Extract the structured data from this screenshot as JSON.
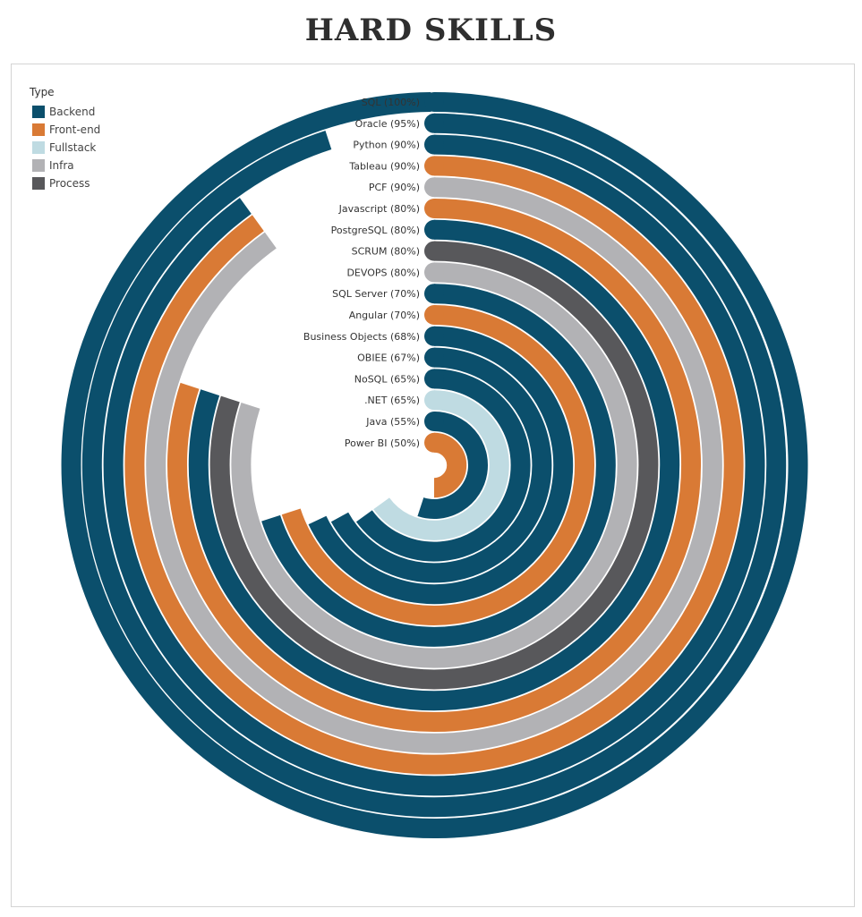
{
  "title": "HARD SKILLS",
  "legend": {
    "title": "Type",
    "items": [
      {
        "label": "Backend",
        "color": "#0b4f6c"
      },
      {
        "label": "Front-end",
        "color": "#d97a35"
      },
      {
        "label": "Fullstack",
        "color": "#bfdbe2"
      },
      {
        "label": "Infra",
        "color": "#b2b2b5"
      },
      {
        "label": "Process",
        "color": "#58585b"
      }
    ]
  },
  "chart_data": {
    "type": "radial-bar",
    "title": "HARD SKILLS",
    "legend_title": "Type",
    "legend_placement": "top-left",
    "grid": false,
    "skills": [
      {
        "label": "SQL (100%)",
        "name": "SQL",
        "value": 100,
        "type": "Backend"
      },
      {
        "label": "Oracle (95%)",
        "name": "Oracle",
        "value": 95,
        "type": "Backend"
      },
      {
        "label": "Python (90%)",
        "name": "Python",
        "value": 90,
        "type": "Backend"
      },
      {
        "label": "Tableau (90%)",
        "name": "Tableau",
        "value": 90,
        "type": "Front-end"
      },
      {
        "label": "PCF (90%)",
        "name": "PCF",
        "value": 90,
        "type": "Infra"
      },
      {
        "label": "Javascript (80%)",
        "name": "Javascript",
        "value": 80,
        "type": "Front-end"
      },
      {
        "label": "PostgreSQL (80%)",
        "name": "PostgreSQL",
        "value": 80,
        "type": "Backend"
      },
      {
        "label": "SCRUM (80%)",
        "name": "SCRUM",
        "value": 80,
        "type": "Process"
      },
      {
        "label": "DEVOPS (80%)",
        "name": "DEVOPS",
        "value": 80,
        "type": "Infra"
      },
      {
        "label": "SQL Server (70%)",
        "name": "SQL Server",
        "value": 70,
        "type": "Backend"
      },
      {
        "label": "Angular (70%)",
        "name": "Angular",
        "value": 70,
        "type": "Front-end"
      },
      {
        "label": "Business Objects (68%)",
        "name": "Business Objects",
        "value": 68,
        "type": "Backend"
      },
      {
        "label": "OBIEE (67%)",
        "name": "OBIEE",
        "value": 67,
        "type": "Backend"
      },
      {
        "label": "NoSQL (65%)",
        "name": "NoSQL",
        "value": 65,
        "type": "Backend"
      },
      {
        "label": ".NET (65%)",
        "name": ".NET",
        "value": 65,
        "type": "Fullstack"
      },
      {
        "label": "Java (55%)",
        "name": "Java",
        "value": 55,
        "type": "Backend"
      },
      {
        "label": "Power BI (50%)",
        "name": "Power BI",
        "value": 50,
        "type": "Front-end"
      }
    ]
  }
}
